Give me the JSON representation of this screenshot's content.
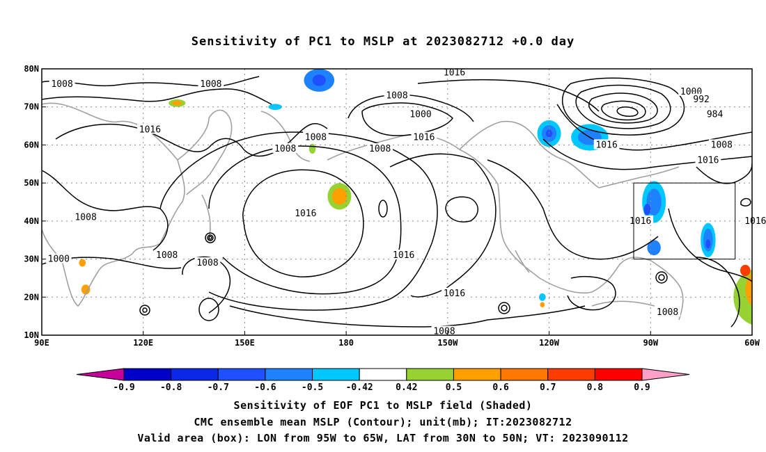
{
  "chart_data": {
    "type": "heatmap",
    "title": "Sensitivity of PC1 to MSLP at 2023082712 +0.0 day",
    "x_ticks": [
      "90E",
      "120E",
      "150E",
      "180",
      "150W",
      "120W",
      "90W",
      "60W"
    ],
    "y_ticks": [
      "10N",
      "20N",
      "30N",
      "40N",
      "50N",
      "60N",
      "70N",
      "80N"
    ],
    "lon_range": [
      90,
      300
    ],
    "lat_range": [
      10,
      80
    ],
    "grid": true,
    "contour_unit": "mb",
    "contour_labels": [
      {
        "text": "1008",
        "lon": 96,
        "lat": 76
      },
      {
        "text": "1008",
        "lon": 140,
        "lat": 76
      },
      {
        "text": "1016",
        "lon": 122,
        "lat": 64
      },
      {
        "text": "1008",
        "lon": 162,
        "lat": 59
      },
      {
        "text": "1008",
        "lon": 171,
        "lat": 62
      },
      {
        "text": "1008",
        "lon": 195,
        "lat": 73
      },
      {
        "text": "1000",
        "lon": 202,
        "lat": 68
      },
      {
        "text": "1016",
        "lon": 212,
        "lat": 79
      },
      {
        "text": "1016",
        "lon": 203,
        "lat": 62
      },
      {
        "text": "1008",
        "lon": 190,
        "lat": 59
      },
      {
        "text": "1016",
        "lon": 168,
        "lat": 42
      },
      {
        "text": "1008",
        "lon": 103,
        "lat": 41
      },
      {
        "text": "1000",
        "lon": 95,
        "lat": 30
      },
      {
        "text": "1008",
        "lon": 127,
        "lat": 31
      },
      {
        "text": "1008",
        "lon": 139,
        "lat": 29
      },
      {
        "text": "1016",
        "lon": 197,
        "lat": 31
      },
      {
        "text": "1016",
        "lon": 212,
        "lat": 21
      },
      {
        "text": "1008",
        "lon": 209,
        "lat": 11
      },
      {
        "text": "1016",
        "lon": 257,
        "lat": 60
      },
      {
        "text": "1000",
        "lon": 282,
        "lat": 74
      },
      {
        "text": "992",
        "lon": 285,
        "lat": 72
      },
      {
        "text": "984",
        "lon": 289,
        "lat": 68
      },
      {
        "text": "1008",
        "lon": 291,
        "lat": 60
      },
      {
        "text": "1016",
        "lon": 287,
        "lat": 56
      },
      {
        "text": "1016",
        "lon": 267,
        "lat": 40
      },
      {
        "text": "1016",
        "lon": 301,
        "lat": 40
      },
      {
        "text": "1008",
        "lon": 275,
        "lat": 16
      }
    ],
    "valid_box": {
      "lon": [
        265,
        295
      ],
      "lat": [
        30,
        50
      ]
    },
    "colorbar": {
      "labels": [
        "-0.9",
        "-0.8",
        "-0.7",
        "-0.6",
        "-0.5",
        "-0.42",
        "0.42",
        "0.5",
        "0.6",
        "0.7",
        "0.8",
        "0.9"
      ],
      "colors": [
        "#0000c8",
        "#0a28e6",
        "#1e50ff",
        "#1e82ff",
        "#00c8ff",
        "#ffffff",
        "#96d232",
        "#ffa000",
        "#ff7800",
        "#ff3c00",
        "#ff0000"
      ],
      "low_end": "#c8009b",
      "high_end": "#ffa0c8"
    },
    "shaded_regions": [
      {
        "lon": 178,
        "lat": 46.5,
        "rlon": 3.5,
        "rlat": 3.5,
        "color": "#96d232"
      },
      {
        "lon": 178,
        "lat": 46.5,
        "rlon": 2.2,
        "rlat": 2.2,
        "color": "#ffa000"
      },
      {
        "lon": 130,
        "lat": 71,
        "rlon": 2.5,
        "rlat": 1.0,
        "color": "#96d232"
      },
      {
        "lon": 130,
        "lat": 71,
        "rlon": 1.4,
        "rlat": 0.6,
        "color": "#ffa000"
      },
      {
        "lon": 170,
        "lat": 59,
        "rlon": 1.0,
        "rlat": 1.3,
        "color": "#96d232"
      },
      {
        "lon": 102,
        "lat": 29,
        "rlon": 1.0,
        "rlat": 1.0,
        "color": "#ffa000"
      },
      {
        "lon": 103,
        "lat": 22,
        "rlon": 1.3,
        "rlat": 1.3,
        "color": "#ffa000"
      },
      {
        "lon": 172,
        "lat": 77,
        "rlon": 4.5,
        "rlat": 3.0,
        "color": "#1e82ff"
      },
      {
        "lon": 172,
        "lat": 77,
        "rlon": 2.0,
        "rlat": 1.5,
        "color": "#1e50ff"
      },
      {
        "lon": 159,
        "lat": 70,
        "rlon": 2.0,
        "rlat": 0.8,
        "color": "#00c8ff"
      },
      {
        "lon": 240,
        "lat": 63,
        "rlon": 3.5,
        "rlat": 3.5,
        "color": "#00c8ff"
      },
      {
        "lon": 240,
        "lat": 63,
        "rlon": 2.2,
        "rlat": 2.2,
        "color": "#1e82ff"
      },
      {
        "lon": 240,
        "lat": 63,
        "rlon": 1.0,
        "rlat": 1.0,
        "color": "#1e50ff"
      },
      {
        "lon": 252,
        "lat": 62,
        "rlon": 5.5,
        "rlat": 3.5,
        "color": "#00c8ff"
      },
      {
        "lon": 252,
        "lat": 62,
        "rlon": 3.5,
        "rlat": 2.0,
        "color": "#1e82ff"
      },
      {
        "lon": 271,
        "lat": 45,
        "rlon": 3.5,
        "rlat": 5.5,
        "color": "#00c8ff"
      },
      {
        "lon": 271,
        "lat": 45,
        "rlon": 2.2,
        "rlat": 3.5,
        "color": "#1e82ff"
      },
      {
        "lon": 269,
        "lat": 43,
        "rlon": 1.0,
        "rlat": 1.5,
        "color": "#1e50ff"
      },
      {
        "lon": 287,
        "lat": 35,
        "rlon": 2.2,
        "rlat": 4.5,
        "color": "#00c8ff"
      },
      {
        "lon": 287,
        "lat": 35,
        "rlon": 1.4,
        "rlat": 3.0,
        "color": "#1e82ff"
      },
      {
        "lon": 287,
        "lat": 34,
        "rlon": 0.7,
        "rlat": 1.2,
        "color": "#1e50ff"
      },
      {
        "lon": 271,
        "lat": 33,
        "rlon": 2.0,
        "rlat": 2.0,
        "color": "#1e82ff"
      },
      {
        "lon": 238,
        "lat": 20,
        "rlon": 1.0,
        "rlat": 1.0,
        "color": "#00c8ff"
      },
      {
        "lon": 238,
        "lat": 18,
        "rlon": 0.7,
        "rlat": 0.7,
        "color": "#ffa000"
      },
      {
        "lon": 302,
        "lat": 20,
        "rlon": 7.5,
        "rlat": 7.5,
        "color": "#96d232"
      },
      {
        "lon": 303,
        "lat": 22,
        "rlon": 5.0,
        "rlat": 5.5,
        "color": "#ffa000"
      },
      {
        "lon": 304,
        "lat": 21,
        "rlon": 2.5,
        "rlat": 3.0,
        "color": "#ff7800"
      },
      {
        "lon": 298,
        "lat": 27,
        "rlon": 1.5,
        "rlat": 1.5,
        "color": "#ff3c00"
      }
    ],
    "captions": [
      "Sensitivity of EOF PC1 to MSLP field (Shaded)",
      "CMC ensemble mean MSLP (Contour); unit(mb); IT:2023082712",
      "Valid area (box): LON from 95W to 65W, LAT from 30N to 50N; VT: 2023090112"
    ]
  }
}
